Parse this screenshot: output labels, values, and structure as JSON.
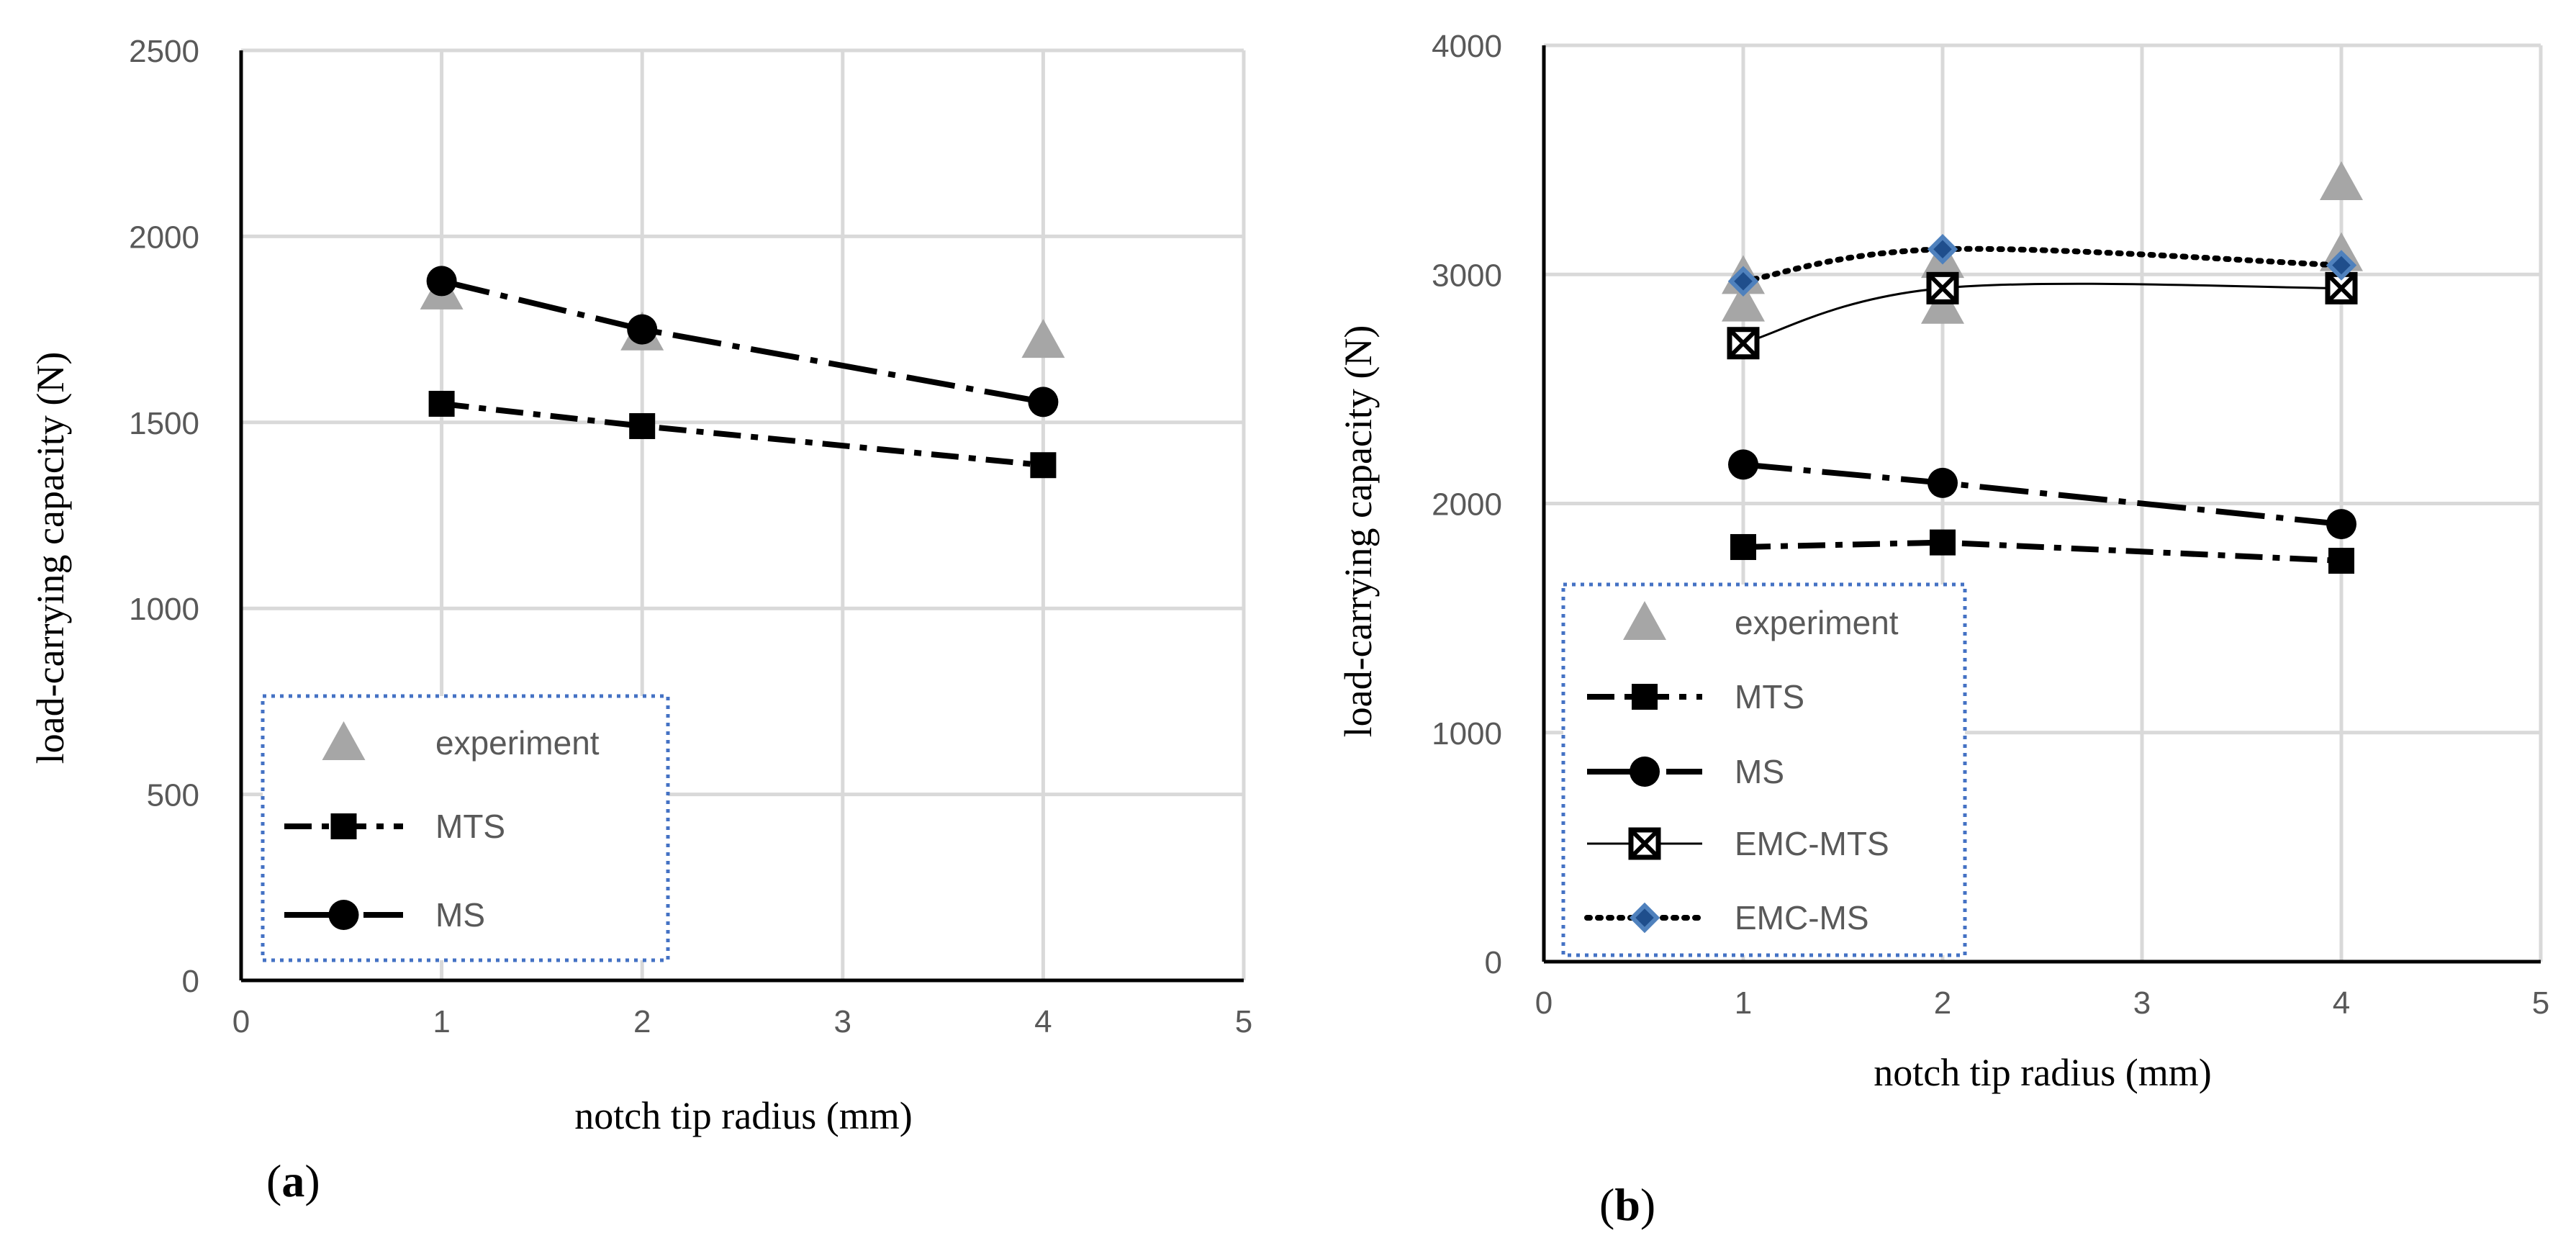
{
  "chart_data": [
    {
      "type": "line",
      "panel_label": "a",
      "xlabel": "notch tip radius (mm)",
      "ylabel": "load-carrying capacity (N)",
      "xlim": [
        0,
        5
      ],
      "ylim": [
        0,
        2500
      ],
      "xticks": [
        "0",
        "1",
        "2",
        "3",
        "4",
        "5"
      ],
      "yticks": [
        "0",
        "500",
        "1000",
        "1500",
        "2000",
        "2500"
      ],
      "grid": true,
      "legend_position": "bottom-left",
      "series": [
        {
          "name": "experiment",
          "x": [
            1,
            2,
            4
          ],
          "y": [
            1850,
            1740,
            1720
          ],
          "color": "#a6a6a6",
          "marker": "triangle",
          "line": "none"
        },
        {
          "name": "MTS",
          "x": [
            1,
            2,
            4
          ],
          "y": [
            1550,
            1490,
            1385
          ],
          "color": "#000000",
          "marker": "square",
          "line": "dashdot"
        },
        {
          "name": "MS",
          "x": [
            1,
            2,
            4
          ],
          "y": [
            1880,
            1750,
            1555
          ],
          "color": "#000000",
          "marker": "circle",
          "line": "dashdotlong"
        }
      ]
    },
    {
      "type": "line",
      "panel_label": "b",
      "xlabel": "notch tip radius (mm)",
      "ylabel": "load-carrying capacity (N)",
      "xlim": [
        0,
        5
      ],
      "ylim": [
        0,
        4000
      ],
      "xticks": [
        "0",
        "1",
        "2",
        "3",
        "4",
        "5"
      ],
      "yticks": [
        "0",
        "1000",
        "2000",
        "3000",
        "4000"
      ],
      "grid": true,
      "legend_position": "bottom-left",
      "series": [
        {
          "name": "experiment",
          "x": [
            1,
            1,
            2,
            2,
            4,
            4
          ],
          "y": [
            2870,
            2990,
            2860,
            3060,
            3400,
            3090
          ],
          "color": "#a6a6a6",
          "marker": "triangle",
          "line": "none"
        },
        {
          "name": "MTS",
          "x": [
            1,
            2,
            4
          ],
          "y": [
            1810,
            1830,
            1750
          ],
          "color": "#000000",
          "marker": "square",
          "line": "dashdot"
        },
        {
          "name": "MS",
          "x": [
            1,
            2,
            4
          ],
          "y": [
            2170,
            2090,
            1910
          ],
          "color": "#000000",
          "marker": "circle",
          "line": "dashdotlong"
        },
        {
          "name": "EMC-MTS",
          "x": [
            1,
            2,
            4
          ],
          "y": [
            2700,
            2940,
            2940
          ],
          "color": "#000000",
          "marker": "xsquare",
          "line": "thin"
        },
        {
          "name": "EMC-MS",
          "x": [
            1,
            2,
            4
          ],
          "y": [
            2970,
            3110,
            3040
          ],
          "color": "#000000",
          "marker": "diamond",
          "line": "dotted"
        }
      ]
    }
  ]
}
